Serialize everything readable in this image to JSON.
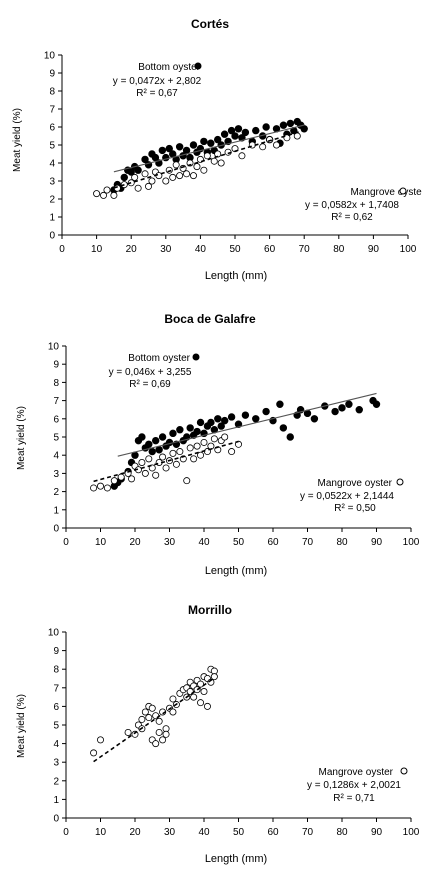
{
  "colors": {
    "filled": "#000000",
    "open_fill": "#ffffff",
    "stroke": "#000000",
    "axis": "#000000",
    "trend_bottom": "#555555"
  },
  "chart_data": [
    {
      "type": "scatter",
      "title": "Cortés",
      "xlabel": "Length  (mm)",
      "ylabel": "Meat yield (%)",
      "xlim": [
        0,
        100
      ],
      "ylim": [
        0,
        10
      ],
      "x_ticks": [
        "0",
        "10",
        "20",
        "30",
        "40",
        "50",
        "60",
        "70",
        "80",
        "90",
        "100"
      ],
      "y_ticks": [
        "0",
        "1",
        "2",
        "3",
        "4",
        "5",
        "6",
        "7",
        "8",
        "9",
        "10"
      ],
      "series": [
        {
          "name": "Bottom oyster",
          "marker": "filled",
          "equation": "y = 0,0472x + 2,802",
          "r2": "R² = 0,67",
          "trend": {
            "slope": 0.0472,
            "intercept": 2.802,
            "x_range": [
              15,
              70
            ],
            "style": "solid"
          },
          "points": [
            [
              15,
              2.5
            ],
            [
              16,
              2.8
            ],
            [
              17,
              2.6
            ],
            [
              18,
              3.2
            ],
            [
              19,
              3.6
            ],
            [
              20,
              3.5
            ],
            [
              21,
              3.8
            ],
            [
              22,
              3.6
            ],
            [
              24,
              4.2
            ],
            [
              25,
              3.9
            ],
            [
              26,
              4.5
            ],
            [
              27,
              4.3
            ],
            [
              28,
              4.0
            ],
            [
              29,
              4.7
            ],
            [
              30,
              4.3
            ],
            [
              31,
              4.8
            ],
            [
              32,
              4.5
            ],
            [
              33,
              4.2
            ],
            [
              34,
              4.9
            ],
            [
              35,
              4.4
            ],
            [
              36,
              4.7
            ],
            [
              37,
              4.3
            ],
            [
              38,
              5.0
            ],
            [
              39,
              4.6
            ],
            [
              40,
              4.8
            ],
            [
              41,
              5.2
            ],
            [
              42,
              4.6
            ],
            [
              43,
              5.1
            ],
            [
              44,
              4.7
            ],
            [
              45,
              5.3
            ],
            [
              46,
              5.0
            ],
            [
              47,
              5.6
            ],
            [
              48,
              5.2
            ],
            [
              49,
              5.8
            ],
            [
              50,
              5.5
            ],
            [
              51,
              5.9
            ],
            [
              52,
              5.4
            ],
            [
              53,
              5.7
            ],
            [
              55,
              5.2
            ],
            [
              56,
              5.8
            ],
            [
              58,
              5.5
            ],
            [
              59,
              6.0
            ],
            [
              60,
              5.3
            ],
            [
              62,
              5.9
            ],
            [
              63,
              5.1
            ],
            [
              64,
              6.1
            ],
            [
              65,
              5.6
            ],
            [
              66,
              6.2
            ],
            [
              67,
              5.8
            ],
            [
              68,
              6.3
            ],
            [
              69,
              6.1
            ],
            [
              70,
              5.9
            ]
          ]
        },
        {
          "name": "Mangrove oyster",
          "marker": "open",
          "equation": "y = 0,0582x + 1,7408",
          "r2": "R² = 0,62",
          "trend": {
            "slope": 0.0582,
            "intercept": 1.7408,
            "x_range": [
              15,
              70
            ],
            "style": "dashed"
          },
          "points": [
            [
              10,
              2.3
            ],
            [
              12,
              2.2
            ],
            [
              13,
              2.5
            ],
            [
              15,
              2.2
            ],
            [
              16,
              2.6
            ],
            [
              18,
              2.8
            ],
            [
              20,
              2.9
            ],
            [
              21,
              3.2
            ],
            [
              22,
              2.6
            ],
            [
              24,
              3.4
            ],
            [
              25,
              2.7
            ],
            [
              26,
              3.0
            ],
            [
              27,
              3.5
            ],
            [
              28,
              3.3
            ],
            [
              30,
              3.0
            ],
            [
              31,
              3.6
            ],
            [
              32,
              3.2
            ],
            [
              33,
              3.9
            ],
            [
              34,
              3.3
            ],
            [
              35,
              3.7
            ],
            [
              36,
              3.4
            ],
            [
              37,
              4.0
            ],
            [
              38,
              3.3
            ],
            [
              39,
              3.8
            ],
            [
              40,
              4.2
            ],
            [
              41,
              3.6
            ],
            [
              42,
              4.4
            ],
            [
              44,
              4.1
            ],
            [
              45,
              4.5
            ],
            [
              46,
              4.0
            ],
            [
              48,
              4.6
            ],
            [
              50,
              4.8
            ],
            [
              52,
              4.4
            ],
            [
              55,
              5.0
            ],
            [
              58,
              4.9
            ],
            [
              60,
              5.3
            ],
            [
              62,
              5.0
            ],
            [
              65,
              5.4
            ],
            [
              68,
              5.5
            ]
          ]
        }
      ]
    },
    {
      "type": "scatter",
      "title": "Boca de Galafre",
      "xlabel": "Length (mm)",
      "ylabel": "Meat yield (%)",
      "xlim": [
        0,
        100
      ],
      "ylim": [
        0,
        10
      ],
      "x_ticks": [
        "0",
        "10",
        "20",
        "30",
        "40",
        "50",
        "60",
        "70",
        "80",
        "90",
        "100"
      ],
      "y_ticks": [
        "0",
        "1",
        "2",
        "3",
        "4",
        "5",
        "6",
        "7",
        "8",
        "9",
        "10"
      ],
      "series": [
        {
          "name": "Bottom oyster",
          "marker": "filled",
          "equation": "y = 0,046x + 3,255",
          "r2": "R² = 0,69",
          "trend": {
            "slope": 0.046,
            "intercept": 3.255,
            "x_range": [
              15,
              90
            ],
            "style": "solid"
          },
          "points": [
            [
              14,
              2.3
            ],
            [
              15,
              2.5
            ],
            [
              16,
              2.7
            ],
            [
              18,
              3.1
            ],
            [
              19,
              3.6
            ],
            [
              20,
              4.0
            ],
            [
              21,
              4.8
            ],
            [
              22,
              5.0
            ],
            [
              23,
              4.4
            ],
            [
              24,
              4.6
            ],
            [
              25,
              4.2
            ],
            [
              26,
              4.8
            ],
            [
              27,
              4.3
            ],
            [
              28,
              5.0
            ],
            [
              29,
              4.5
            ],
            [
              30,
              4.7
            ],
            [
              31,
              5.2
            ],
            [
              32,
              4.6
            ],
            [
              33,
              5.4
            ],
            [
              34,
              4.8
            ],
            [
              35,
              5.0
            ],
            [
              36,
              5.5
            ],
            [
              37,
              5.1
            ],
            [
              38,
              5.3
            ],
            [
              39,
              5.8
            ],
            [
              40,
              5.2
            ],
            [
              41,
              5.6
            ],
            [
              42,
              5.8
            ],
            [
              43,
              5.4
            ],
            [
              44,
              6.0
            ],
            [
              45,
              5.6
            ],
            [
              46,
              5.9
            ],
            [
              48,
              6.1
            ],
            [
              50,
              5.7
            ],
            [
              52,
              6.2
            ],
            [
              55,
              6.0
            ],
            [
              58,
              6.4
            ],
            [
              60,
              5.9
            ],
            [
              62,
              6.8
            ],
            [
              63,
              5.5
            ],
            [
              65,
              5.0
            ],
            [
              67,
              6.2
            ],
            [
              68,
              6.5
            ],
            [
              70,
              6.3
            ],
            [
              72,
              6.0
            ],
            [
              75,
              6.7
            ],
            [
              78,
              6.4
            ],
            [
              80,
              6.6
            ],
            [
              82,
              6.8
            ],
            [
              85,
              6.5
            ],
            [
              89,
              7.0
            ],
            [
              90,
              6.8
            ]
          ]
        },
        {
          "name": "Mangrove oyster",
          "marker": "open",
          "equation": "y = 0,0522x + 2,1444",
          "r2": "R² = 0,50",
          "trend": {
            "slope": 0.0522,
            "intercept": 2.1444,
            "x_range": [
              8,
              50
            ],
            "style": "dashed"
          },
          "points": [
            [
              8,
              2.2
            ],
            [
              10,
              2.3
            ],
            [
              12,
              2.2
            ],
            [
              14,
              2.6
            ],
            [
              16,
              2.8
            ],
            [
              18,
              3.0
            ],
            [
              19,
              2.7
            ],
            [
              20,
              3.4
            ],
            [
              21,
              3.2
            ],
            [
              22,
              3.6
            ],
            [
              23,
              3.0
            ],
            [
              24,
              3.8
            ],
            [
              25,
              3.3
            ],
            [
              26,
              2.9
            ],
            [
              27,
              3.6
            ],
            [
              28,
              3.9
            ],
            [
              29,
              3.3
            ],
            [
              30,
              3.7
            ],
            [
              31,
              4.1
            ],
            [
              32,
              3.5
            ],
            [
              33,
              4.2
            ],
            [
              34,
              3.8
            ],
            [
              35,
              2.6
            ],
            [
              36,
              4.4
            ],
            [
              37,
              3.8
            ],
            [
              38,
              4.5
            ],
            [
              39,
              4.0
            ],
            [
              40,
              4.7
            ],
            [
              41,
              4.2
            ],
            [
              42,
              4.5
            ],
            [
              43,
              4.9
            ],
            [
              44,
              4.3
            ],
            [
              45,
              4.8
            ],
            [
              46,
              5.0
            ],
            [
              48,
              4.2
            ],
            [
              50,
              4.6
            ]
          ]
        }
      ]
    },
    {
      "type": "scatter",
      "title": "Morrillo",
      "xlabel": "Length (mm)",
      "ylabel": "Meat yield (%)",
      "xlim": [
        0,
        100
      ],
      "ylim": [
        0,
        10
      ],
      "x_ticks": [
        "0",
        "10",
        "20",
        "30",
        "40",
        "50",
        "60",
        "70",
        "80",
        "90",
        "100"
      ],
      "y_ticks": [
        "0",
        "1",
        "2",
        "3",
        "4",
        "5",
        "6",
        "7",
        "8",
        "9",
        "10"
      ],
      "series": [
        {
          "name": "Mangrove oyster",
          "marker": "open",
          "equation": "y = 0,1286x + 2,0021",
          "r2": "R² = 0,71",
          "trend": {
            "slope": 0.1286,
            "intercept": 2.0021,
            "x_range": [
              8,
              43
            ],
            "style": "dashed"
          },
          "points": [
            [
              8,
              3.5
            ],
            [
              10,
              4.2
            ],
            [
              18,
              4.6
            ],
            [
              20,
              4.5
            ],
            [
              21,
              5.0
            ],
            [
              22,
              5.3
            ],
            [
              22,
              4.8
            ],
            [
              23,
              5.7
            ],
            [
              24,
              6.0
            ],
            [
              24,
              5.4
            ],
            [
              25,
              5.9
            ],
            [
              25,
              4.2
            ],
            [
              26,
              4.0
            ],
            [
              26,
              5.5
            ],
            [
              27,
              5.2
            ],
            [
              27,
              4.6
            ],
            [
              28,
              5.7
            ],
            [
              28,
              4.2
            ],
            [
              29,
              4.8
            ],
            [
              29,
              4.5
            ],
            [
              30,
              5.9
            ],
            [
              31,
              5.7
            ],
            [
              31,
              6.4
            ],
            [
              32,
              6.1
            ],
            [
              33,
              6.7
            ],
            [
              34,
              6.9
            ],
            [
              35,
              7.0
            ],
            [
              35,
              6.5
            ],
            [
              36,
              7.3
            ],
            [
              36,
              6.8
            ],
            [
              37,
              7.1
            ],
            [
              37,
              6.5
            ],
            [
              38,
              7.4
            ],
            [
              38,
              6.9
            ],
            [
              39,
              7.2
            ],
            [
              39,
              6.2
            ],
            [
              40,
              7.6
            ],
            [
              40,
              6.8
            ],
            [
              41,
              7.5
            ],
            [
              41,
              6.0
            ],
            [
              42,
              8.0
            ],
            [
              42,
              7.3
            ],
            [
              43,
              7.9
            ],
            [
              43,
              7.6
            ]
          ]
        }
      ]
    }
  ]
}
